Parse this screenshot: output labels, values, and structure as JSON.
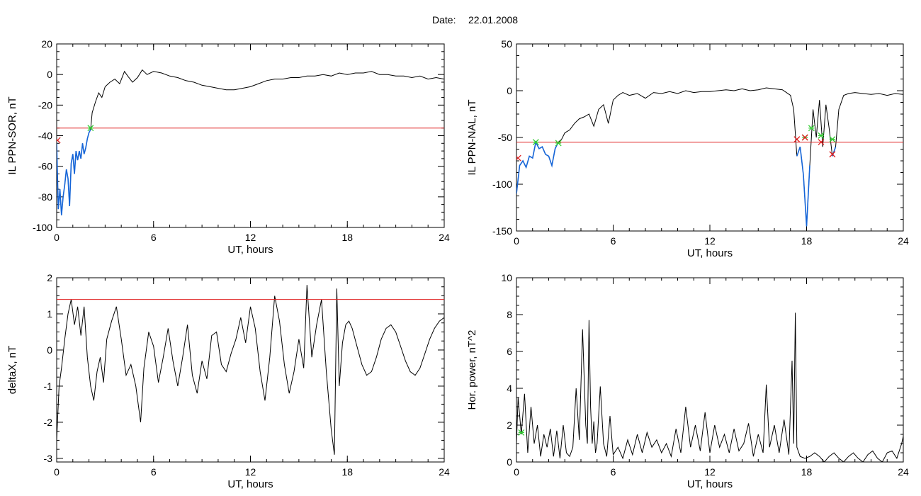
{
  "figure": {
    "date_label": "Date:",
    "date_value": "22.01.2008"
  },
  "chart_data": [
    {
      "type": "line",
      "ylabel": "IL PPN-SOR, nT",
      "xlabel": "UT, hours",
      "xlim": [
        0,
        24
      ],
      "ylim": [
        -100,
        20
      ],
      "xticks": [
        "0",
        "6",
        "12",
        "18",
        "24"
      ],
      "yticks": [
        "-100",
        "-80",
        "-60",
        "-40",
        "-20",
        "0",
        "20"
      ],
      "threshold": -35,
      "colors": {
        "trace": "#000000",
        "highlight": "#1565d8",
        "threshold": "#e02020",
        "start": "#33cc33",
        "end": "#e02020"
      },
      "series": [
        {
          "x": [
            0,
            0.1,
            0.2,
            0.3,
            0.4,
            0.5,
            0.6,
            0.7,
            0.8,
            0.9,
            1.0,
            1.1,
            1.2,
            1.3,
            1.4,
            1.5,
            1.6,
            1.7,
            1.8,
            1.9,
            2.0,
            2.1,
            2.2,
            2.4,
            2.6,
            2.8,
            3.0,
            3.3,
            3.6,
            3.9,
            4.2,
            4.4,
            4.7,
            5.0,
            5.3,
            5.6,
            6.0,
            6.5,
            7.0,
            7.5,
            8.0,
            8.5,
            9.0,
            9.5,
            10.0,
            10.5,
            11.0,
            11.5,
            12.0,
            12.5,
            13.0,
            13.5,
            14.0,
            14.5,
            15.0,
            15.5,
            16.0,
            16.5,
            17.0,
            17.5,
            18.0,
            18.5,
            19.0,
            19.5,
            20.0,
            20.5,
            21.0,
            21.5,
            22.0,
            22.5,
            23.0,
            23.5,
            24.0
          ],
          "values": [
            -45,
            -88,
            -75,
            -92,
            -80,
            -72,
            -62,
            -68,
            -86,
            -58,
            -52,
            -65,
            -50,
            -56,
            -50,
            -55,
            -45,
            -52,
            -48,
            -42,
            -38,
            -36,
            -25,
            -18,
            -12,
            -15,
            -8,
            -5,
            -3,
            -6,
            2,
            -1,
            -5,
            -2,
            3,
            0,
            2,
            1,
            -1,
            -2,
            -4,
            -5,
            -7,
            -8,
            -9,
            -10,
            -10,
            -9,
            -8,
            -6,
            -4,
            -3,
            -3,
            -2,
            -2,
            -1,
            -1,
            0,
            -1,
            1,
            0,
            1,
            1,
            2,
            0,
            0,
            -1,
            -1,
            -2,
            -1,
            -3,
            -2,
            -3
          ]
        }
      ],
      "markers": [
        {
          "kind": "start",
          "x": 2.1,
          "y": -35
        },
        {
          "kind": "end",
          "x": 0.05,
          "y": -43
        }
      ]
    },
    {
      "type": "line",
      "ylabel": "IL PPN-NAL, nT",
      "xlabel": "UT, hours",
      "xlim": [
        0,
        24
      ],
      "ylim": [
        -150,
        50
      ],
      "xticks": [
        "0",
        "6",
        "12",
        "18",
        "24"
      ],
      "yticks": [
        "-150",
        "-100",
        "-50",
        "0",
        "50"
      ],
      "threshold": -55,
      "colors": {
        "trace": "#000000",
        "highlight": "#1565d8",
        "threshold": "#e02020",
        "start": "#33cc33",
        "end": "#e02020"
      },
      "series": [
        {
          "x": [
            0,
            0.2,
            0.4,
            0.6,
            0.8,
            1.0,
            1.2,
            1.4,
            1.6,
            1.8,
            2.0,
            2.2,
            2.4,
            2.6,
            2.8,
            3.0,
            3.3,
            3.6,
            3.9,
            4.2,
            4.5,
            4.8,
            5.1,
            5.4,
            5.7,
            6.0,
            6.3,
            6.6,
            7.0,
            7.5,
            8.0,
            8.5,
            9.0,
            9.5,
            10.0,
            10.5,
            11.0,
            11.5,
            12.0,
            12.5,
            13.0,
            13.5,
            14.0,
            14.5,
            15.0,
            15.5,
            16.0,
            16.5,
            17.0,
            17.2,
            17.4,
            17.6,
            17.8,
            18.0,
            18.2,
            18.4,
            18.6,
            18.8,
            19.0,
            19.2,
            19.4,
            19.6,
            19.8,
            20.0,
            20.3,
            20.6,
            21.0,
            21.5,
            22.0,
            22.5,
            23.0,
            23.5,
            24.0
          ],
          "values": [
            -110,
            -80,
            -75,
            -82,
            -70,
            -72,
            -55,
            -62,
            -60,
            -68,
            -70,
            -80,
            -62,
            -55,
            -52,
            -45,
            -42,
            -35,
            -30,
            -28,
            -25,
            -38,
            -20,
            -15,
            -35,
            -10,
            -5,
            -2,
            -5,
            -3,
            -8,
            -2,
            -3,
            -1,
            -3,
            0,
            -2,
            -1,
            -1,
            0,
            1,
            0,
            2,
            0,
            1,
            3,
            2,
            1,
            -5,
            -20,
            -70,
            -60,
            -90,
            -145,
            -80,
            -20,
            -50,
            -10,
            -60,
            -15,
            -40,
            -70,
            -60,
            -20,
            -5,
            -3,
            -2,
            -3,
            -4,
            -3,
            -5,
            -3,
            -4
          ]
        }
      ],
      "markers": [
        {
          "kind": "start",
          "x": 1.2,
          "y": -55
        },
        {
          "kind": "start",
          "x": 2.6,
          "y": -56
        },
        {
          "kind": "start",
          "x": 17.9,
          "y": -50
        },
        {
          "kind": "start",
          "x": 18.3,
          "y": -40
        },
        {
          "kind": "start",
          "x": 18.9,
          "y": -48
        },
        {
          "kind": "start",
          "x": 19.6,
          "y": -52
        },
        {
          "kind": "end",
          "x": 0.1,
          "y": -72
        },
        {
          "kind": "end",
          "x": 17.4,
          "y": -52
        },
        {
          "kind": "end",
          "x": 17.9,
          "y": -50
        },
        {
          "kind": "end",
          "x": 18.9,
          "y": -55
        },
        {
          "kind": "end",
          "x": 19.6,
          "y": -68
        }
      ]
    },
    {
      "type": "line",
      "ylabel": "deltaX, nT",
      "xlabel": "UT, hours",
      "xlim": [
        0,
        24
      ],
      "ylim": [
        -3.1,
        2
      ],
      "xticks": [
        "0",
        "6",
        "12",
        "18",
        "24"
      ],
      "yticks": [
        "-3",
        "-2",
        "-1",
        "0",
        "1",
        "2"
      ],
      "threshold": 1.4,
      "colors": {
        "trace": "#000000",
        "threshold": "#e02020"
      },
      "series": [
        {
          "x": [
            0,
            0.15,
            0.3,
            0.5,
            0.7,
            0.9,
            1.1,
            1.3,
            1.5,
            1.7,
            1.9,
            2.1,
            2.3,
            2.5,
            2.7,
            2.9,
            3.1,
            3.4,
            3.7,
            4.0,
            4.3,
            4.6,
            4.9,
            5.2,
            5.4,
            5.7,
            6.0,
            6.3,
            6.6,
            6.9,
            7.2,
            7.5,
            7.8,
            8.1,
            8.4,
            8.7,
            9.0,
            9.3,
            9.6,
            9.9,
            10.2,
            10.5,
            10.8,
            11.1,
            11.4,
            11.7,
            12.0,
            12.3,
            12.6,
            12.9,
            13.2,
            13.5,
            13.8,
            14.1,
            14.4,
            14.7,
            15.0,
            15.3,
            15.5,
            15.8,
            16.1,
            16.4,
            16.7,
            17.0,
            17.2,
            17.35,
            17.5,
            17.7,
            17.9,
            18.1,
            18.3,
            18.6,
            18.9,
            19.2,
            19.5,
            19.8,
            20.1,
            20.4,
            20.7,
            21.0,
            21.3,
            21.6,
            21.9,
            22.2,
            22.5,
            22.8,
            23.1,
            23.4,
            23.7,
            24.0
          ],
          "values": [
            -2.5,
            -1.0,
            -0.5,
            0.3,
            1.0,
            1.4,
            0.7,
            1.2,
            0.4,
            1.2,
            -0.2,
            -1.0,
            -1.4,
            -0.6,
            -0.2,
            -0.9,
            0.3,
            0.8,
            1.2,
            0.3,
            -0.7,
            -0.4,
            -1.0,
            -2.0,
            -0.5,
            0.5,
            0.1,
            -0.9,
            -0.2,
            0.6,
            -0.3,
            -1.0,
            -0.2,
            0.7,
            -0.7,
            -1.2,
            -0.3,
            -0.8,
            0.4,
            0.5,
            -0.4,
            -0.6,
            -0.1,
            0.3,
            0.9,
            0.2,
            1.2,
            0.6,
            -0.6,
            -1.4,
            -0.2,
            1.5,
            0.8,
            -0.4,
            -1.2,
            -0.6,
            0.3,
            -0.5,
            1.8,
            -0.2,
            0.7,
            1.4,
            -0.6,
            -2.2,
            -2.9,
            1.7,
            -1.0,
            0.2,
            0.7,
            0.8,
            0.6,
            0.1,
            -0.4,
            -0.7,
            -0.6,
            -0.2,
            0.3,
            0.6,
            0.7,
            0.5,
            0.1,
            -0.3,
            -0.6,
            -0.7,
            -0.5,
            -0.1,
            0.3,
            0.6,
            0.8,
            0.9
          ]
        }
      ]
    },
    {
      "type": "line",
      "ylabel": "Hor. power, nT^2",
      "xlabel": "UT, hours",
      "xlim": [
        0,
        24
      ],
      "ylim": [
        0,
        10
      ],
      "xticks": [
        "0",
        "6",
        "12",
        "18",
        "24"
      ],
      "yticks": [
        "0",
        "2",
        "4",
        "6",
        "8",
        "10"
      ],
      "colors": {
        "trace": "#000000",
        "start": "#33cc33"
      },
      "series": [
        {
          "x": [
            0,
            0.1,
            0.3,
            0.5,
            0.7,
            0.9,
            1.1,
            1.3,
            1.5,
            1.7,
            1.9,
            2.1,
            2.3,
            2.5,
            2.7,
            2.9,
            3.1,
            3.3,
            3.5,
            3.7,
            3.9,
            4.1,
            4.3,
            4.4,
            4.5,
            4.6,
            4.7,
            4.8,
            4.9,
            5.0,
            5.2,
            5.4,
            5.6,
            5.8,
            6.0,
            6.3,
            6.6,
            6.9,
            7.2,
            7.5,
            7.8,
            8.1,
            8.4,
            8.7,
            9.0,
            9.3,
            9.6,
            9.9,
            10.2,
            10.5,
            10.8,
            11.1,
            11.4,
            11.7,
            12.0,
            12.3,
            12.6,
            12.9,
            13.2,
            13.5,
            13.8,
            14.1,
            14.4,
            14.7,
            15.0,
            15.3,
            15.5,
            15.7,
            16.0,
            16.3,
            16.6,
            16.9,
            17.1,
            17.2,
            17.3,
            17.4,
            17.6,
            17.9,
            18.2,
            18.5,
            18.8,
            19.1,
            19.4,
            19.7,
            20.0,
            20.3,
            20.6,
            20.9,
            21.2,
            21.5,
            21.8,
            22.1,
            22.4,
            22.7,
            23.0,
            23.3,
            23.6,
            23.9,
            24.0
          ],
          "values": [
            1.0,
            3.5,
            1.5,
            3.7,
            0.5,
            3.0,
            1.0,
            2.0,
            0.3,
            1.5,
            0.8,
            1.8,
            0.3,
            1.7,
            0.2,
            2.0,
            0.5,
            0.3,
            0.8,
            4.0,
            1.2,
            7.2,
            2.0,
            1.0,
            7.7,
            3.0,
            1.0,
            2.2,
            0.5,
            1.0,
            4.1,
            1.0,
            0.3,
            2.5,
            0.4,
            0.8,
            0.2,
            1.2,
            0.4,
            1.5,
            0.5,
            1.6,
            0.8,
            1.2,
            0.5,
            1.0,
            0.3,
            1.8,
            0.5,
            3.0,
            0.8,
            2.0,
            0.6,
            2.7,
            0.5,
            2.0,
            0.8,
            1.5,
            0.5,
            1.8,
            0.6,
            1.0,
            2.1,
            0.3,
            1.5,
            0.5,
            4.2,
            0.8,
            2.0,
            0.5,
            2.3,
            0.4,
            5.5,
            1.0,
            8.1,
            0.8,
            0.3,
            0.2,
            0.3,
            0.5,
            0.3,
            0.0,
            0.3,
            0.5,
            0.2,
            0.0,
            0.3,
            0.5,
            0.2,
            0.0,
            0.4,
            0.6,
            0.2,
            0.0,
            0.5,
            0.6,
            0.2,
            1.0,
            1.4
          ]
        }
      ],
      "markers": [
        {
          "kind": "start",
          "x": 0.3,
          "y": 1.6
        }
      ]
    }
  ]
}
